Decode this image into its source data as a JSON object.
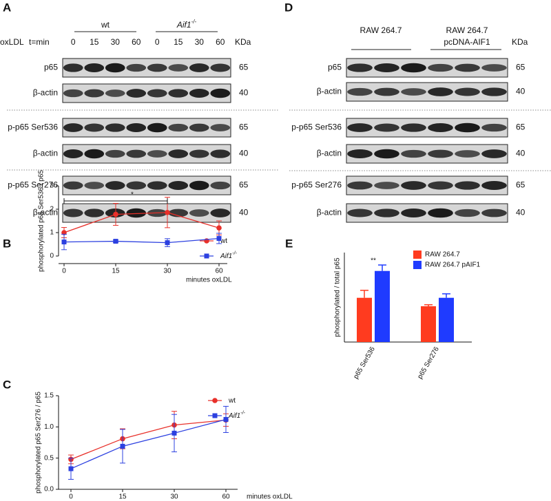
{
  "panel_a": {
    "letter": "A",
    "treatment": "oxLDL",
    "time_label": "t=min",
    "groups": [
      {
        "name": "wt"
      },
      {
        "name": "Aif1",
        "sup": "-/-"
      }
    ],
    "times": [
      0,
      15,
      30,
      60,
      0,
      15,
      30,
      60
    ],
    "unit": "KDa",
    "rows": [
      {
        "label": "p65",
        "kda": "65"
      },
      {
        "label": "β-actin",
        "kda": "40"
      },
      {
        "label": "p-p65 Ser536",
        "kda": "65"
      },
      {
        "label": "β-actin",
        "kda": "40"
      },
      {
        "label": "p-p65 Ser276",
        "kda": "65"
      },
      {
        "label": "β-actin",
        "kda": "40"
      }
    ]
  },
  "panel_d": {
    "letter": "D",
    "groups": [
      {
        "lines": [
          "RAW 264.7"
        ]
      },
      {
        "lines": [
          "RAW 264.7",
          "pcDNA-AIF1"
        ]
      }
    ],
    "unit": "KDa",
    "rows": [
      {
        "label": "p65",
        "kda": "65"
      },
      {
        "label": "β-actin",
        "kda": "40"
      },
      {
        "label": "p-p65 Ser536",
        "kda": "65"
      },
      {
        "label": "β-actin",
        "kda": "40"
      },
      {
        "label": "p-p65 Ser276",
        "kda": "65"
      },
      {
        "label": "β-actin",
        "kda": "40"
      }
    ]
  },
  "chart_data": [
    {
      "type": "line",
      "label": "B",
      "y_label": "phosphorylated p65 Ser536 / p65",
      "x_label": "minutes oxLDL",
      "categories": [
        0,
        15,
        30,
        60
      ],
      "ylim": [
        0,
        3
      ],
      "yticks": [
        0,
        1,
        2,
        3
      ],
      "annotation": "*",
      "series": [
        {
          "name": "wt",
          "color": "#e8302a",
          "marker": "circle",
          "values": [
            1.0,
            1.78,
            1.86,
            1.2
          ],
          "errors": [
            0.22,
            0.47,
            0.65,
            0.3
          ]
        },
        {
          "name": "Aif1",
          "name_sup": "-/-",
          "color": "#2c40e0",
          "marker": "square",
          "values": [
            0.6,
            0.63,
            0.57,
            0.75
          ],
          "errors": [
            0.33,
            0.05,
            0.17,
            0.22
          ]
        }
      ]
    },
    {
      "type": "line",
      "label": "C",
      "y_label": "phosphorylated p65 Ser276 / p65",
      "x_label": "minutes oxLDL",
      "categories": [
        0,
        15,
        30,
        60
      ],
      "ylim": [
        0,
        1.5
      ],
      "yticks": [
        {
          "value": 0,
          "label": "0.0"
        },
        {
          "value": 0.5,
          "label": "0.5"
        },
        {
          "value": 1,
          "label": "1.0"
        },
        {
          "value": 1.5,
          "label": "1.5"
        }
      ],
      "series": [
        {
          "name": "wt",
          "color": "#e8302a",
          "marker": "circle",
          "values": [
            0.48,
            0.81,
            1.03,
            1.11
          ],
          "errors": [
            0.07,
            0.16,
            0.22,
            0.1
          ]
        },
        {
          "name": "Aif1",
          "name_sup": "-/-",
          "color": "#2c40e0",
          "marker": "square",
          "values": [
            0.33,
            0.69,
            0.9,
            1.12
          ],
          "errors": [
            0.17,
            0.27,
            0.3,
            0.21
          ]
        }
      ]
    },
    {
      "type": "bar",
      "label": "E",
      "y_label": "phosphorylated / total p65",
      "categories": [
        "p65 Ser536",
        "p65 Ser276"
      ],
      "ylim": [
        0,
        1.8
      ],
      "annotation": "**",
      "series": [
        {
          "name": "RAW 264.7",
          "color": "#ff3b1f",
          "values": [
            0.89,
            0.72
          ],
          "errors": [
            0.15,
            0.03
          ]
        },
        {
          "name": "RAW 264.7 pAIF1",
          "color": "#1f3bff",
          "values": [
            1.43,
            0.89
          ],
          "errors": [
            0.12,
            0.08
          ]
        }
      ]
    }
  ]
}
